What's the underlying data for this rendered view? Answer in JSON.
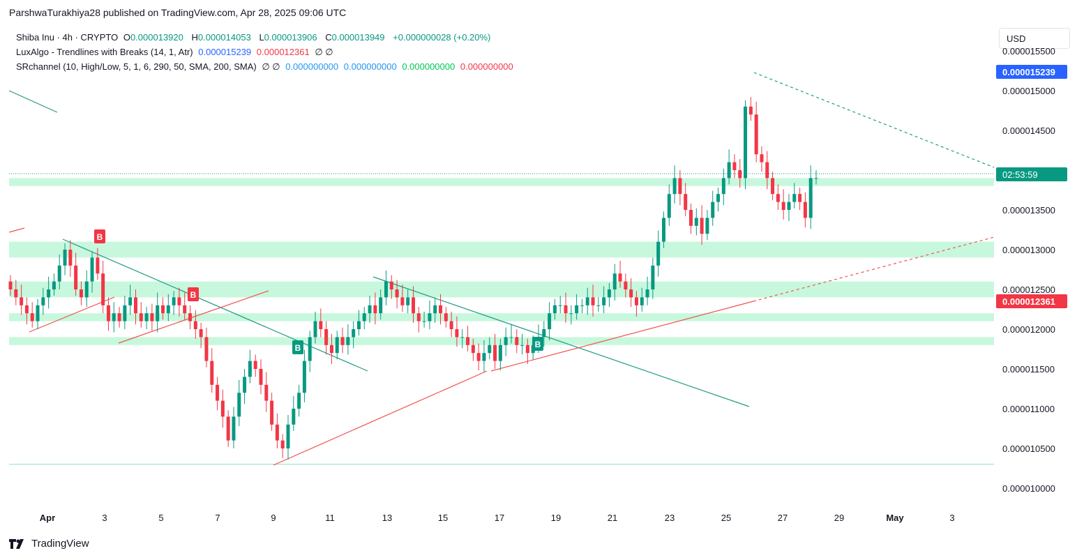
{
  "header": "ParshwaTurakhiya28 published on TradingView.com, Apr 28, 2025 09:06 UTC",
  "legend": {
    "symbol": "Shiba Inu · 4h · CRYPTO",
    "o_label": "O",
    "o": "0.000013920",
    "h_label": "H",
    "h": "0.000014053",
    "l_label": "L",
    "l": "0.000013906",
    "c_label": "C",
    "c": "0.000013949",
    "change": "+0.000000028 (+0.20%)",
    "luxalgo_name": "LuxAlgo - Trendlines with Breaks (14, 1, Atr)",
    "luxalgo_v1": "0.000015239",
    "luxalgo_v2": "0.000012361",
    "luxalgo_v3": "∅ ∅",
    "sr_name": "SRchannel (10, High/Low, 5, 1, 6, 290, 50, SMA, 200, SMA)",
    "sr_v0": "∅ ∅",
    "sr_v1": "0.000000000",
    "sr_v2": "0.000000000",
    "sr_v3": "0.000000000",
    "sr_v4": "0.000000000"
  },
  "currency_button": "USD",
  "footer_brand": "TradingView",
  "colors": {
    "up": "#089981",
    "down": "#f23645",
    "sr_zone": "#b9f6d4",
    "sr_line": "#8fe0b8",
    "trend_down": "#1e9a83",
    "trend_up": "#f0524f",
    "label_blue": "#2962ff",
    "label_red": "#f23645",
    "label_green": "#089981"
  },
  "chart_data": {
    "type": "candlestick",
    "title": "Shiba Inu · 4h · CRYPTO",
    "x_tick_labels": [
      "Apr",
      "3",
      "5",
      "7",
      "9",
      "11",
      "13",
      "15",
      "17",
      "19",
      "21",
      "23",
      "25",
      "27",
      "29",
      "May",
      "3"
    ],
    "y_tick_labels": [
      "0.000010000",
      "0.000010500",
      "0.000011000",
      "0.000011500",
      "0.000012000",
      "0.000012500",
      "0.000013000",
      "0.000013500",
      "0.000014000",
      "0.000014500",
      "0.000015000",
      "0.000015500"
    ],
    "ylim": [
      9.9e-06,
      1.56e-05
    ],
    "price_labels": [
      {
        "text": "0.000015239",
        "value": 1.5239e-05,
        "color": "blue"
      },
      {
        "text": "0.000012361",
        "value": 1.2361e-05,
        "color": "red"
      },
      {
        "text": "02:53:59",
        "value": 1.3949e-05,
        "color": "green"
      }
    ],
    "sr_zones": [
      [
        1.38e-05,
        1.39e-05
      ],
      [
        1.29e-05,
        1.31e-05
      ],
      [
        1.24e-05,
        1.26e-05
      ],
      [
        1.21e-05,
        1.22e-05
      ],
      [
        1.18e-05,
        1.19e-05
      ]
    ],
    "sr_line": 1.03e-05,
    "break_labels": [
      {
        "text": "B",
        "type": "sell",
        "date": "Apr 2",
        "price": 1.3e-05
      },
      {
        "text": "B",
        "type": "sell",
        "date": "Apr 6",
        "price": 1.24e-05
      },
      {
        "text": "B",
        "type": "buy",
        "date": "Apr 9",
        "price": 1.18e-05
      },
      {
        "text": "B",
        "type": "buy",
        "date": "Apr 18",
        "price": 1.18e-05
      }
    ],
    "candles_close": [
      1.25e-05,
      1.24e-05,
      1.23e-05,
      1.22e-05,
      1.21e-05,
      1.23e-05,
      1.24e-05,
      1.25e-05,
      1.26e-05,
      1.28e-05,
      1.3e-05,
      1.28e-05,
      1.25e-05,
      1.24e-05,
      1.26e-05,
      1.29e-05,
      1.27e-05,
      1.23e-05,
      1.21e-05,
      1.22e-05,
      1.21e-05,
      1.23e-05,
      1.24e-05,
      1.22e-05,
      1.21e-05,
      1.22e-05,
      1.21e-05,
      1.23e-05,
      1.22e-05,
      1.23e-05,
      1.24e-05,
      1.23e-05,
      1.22e-05,
      1.21e-05,
      1.2e-05,
      1.19e-05,
      1.16e-05,
      1.13e-05,
      1.11e-05,
      1.09e-05,
      1.06e-05,
      1.09e-05,
      1.12e-05,
      1.14e-05,
      1.16e-05,
      1.15e-05,
      1.13e-05,
      1.11e-05,
      1.08e-05,
      1.06e-05,
      1.05e-05,
      1.08e-05,
      1.1e-05,
      1.12e-05,
      1.16e-05,
      1.19e-05,
      1.21e-05,
      1.2e-05,
      1.18e-05,
      1.17e-05,
      1.19e-05,
      1.18e-05,
      1.19e-05,
      1.2e-05,
      1.21e-05,
      1.22e-05,
      1.23e-05,
      1.22e-05,
      1.24e-05,
      1.26e-05,
      1.25e-05,
      1.24e-05,
      1.23e-05,
      1.24e-05,
      1.22e-05,
      1.21e-05,
      1.21e-05,
      1.22e-05,
      1.23e-05,
      1.22e-05,
      1.21e-05,
      1.2e-05,
      1.19e-05,
      1.19e-05,
      1.18e-05,
      1.17e-05,
      1.16e-05,
      1.17e-05,
      1.18e-05,
      1.16e-05,
      1.18e-05,
      1.19e-05,
      1.19e-05,
      1.18e-05,
      1.18e-05,
      1.17e-05,
      1.18e-05,
      1.19e-05,
      1.2e-05,
      1.22e-05,
      1.23e-05,
      1.23e-05,
      1.22e-05,
      1.22e-05,
      1.23e-05,
      1.23e-05,
      1.24e-05,
      1.23e-05,
      1.23e-05,
      1.24e-05,
      1.25e-05,
      1.27e-05,
      1.26e-05,
      1.25e-05,
      1.24e-05,
      1.23e-05,
      1.24e-05,
      1.25e-05,
      1.28e-05,
      1.31e-05,
      1.34e-05,
      1.37e-05,
      1.39e-05,
      1.37e-05,
      1.35e-05,
      1.33e-05,
      1.34e-05,
      1.32e-05,
      1.34e-05,
      1.36e-05,
      1.37e-05,
      1.39e-05,
      1.41e-05,
      1.4e-05,
      1.39e-05,
      1.48e-05,
      1.47e-05,
      1.42e-05,
      1.41e-05,
      1.39e-05,
      1.37e-05,
      1.36e-05,
      1.35e-05,
      1.36e-05,
      1.37e-05,
      1.36e-05,
      1.34e-05,
      1.39e-05,
      1.39e-05
    ]
  }
}
